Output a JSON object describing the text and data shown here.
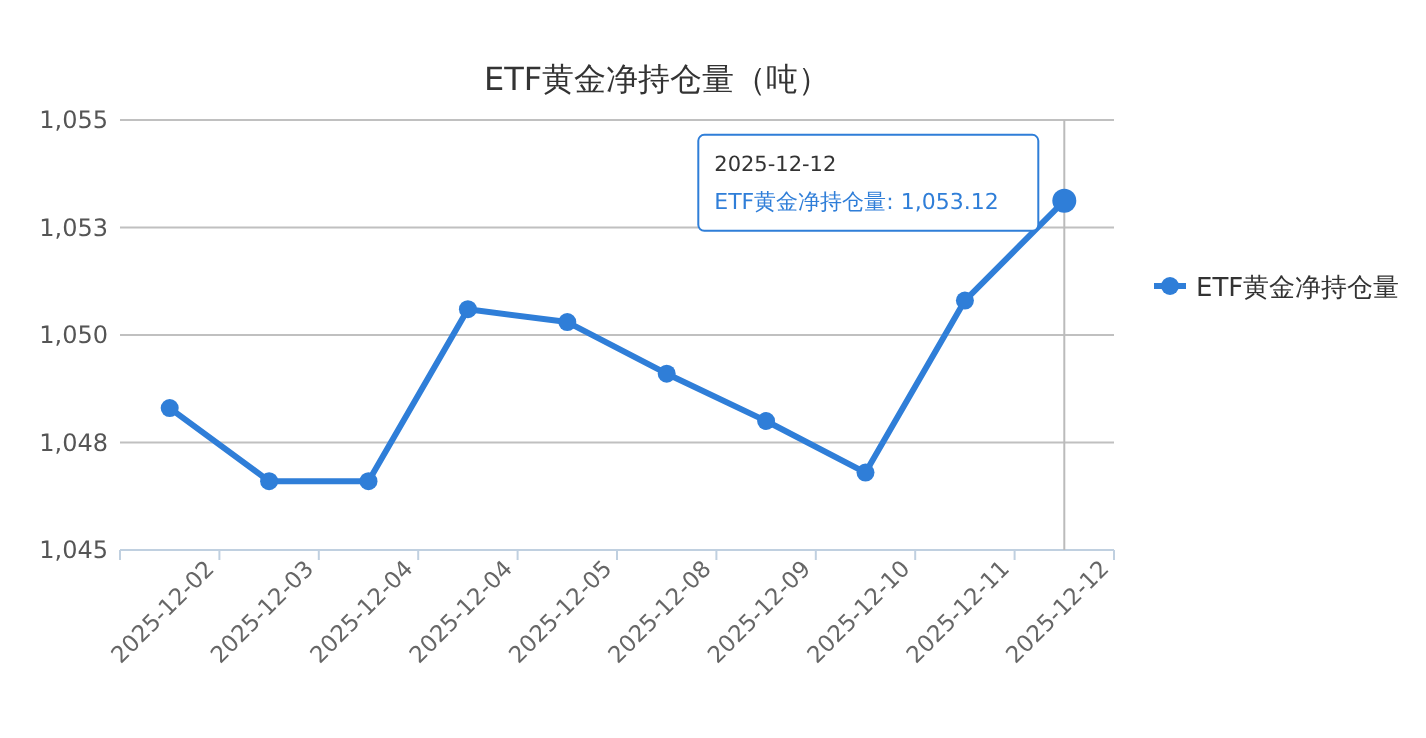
{
  "chart_data": {
    "type": "line",
    "title": "ETF黄金净持仓量（吨）",
    "categories": [
      "2025-12-02",
      "2025-12-03",
      "2025-12-04",
      "2025-12-04",
      "2025-12-05",
      "2025-12-08",
      "2025-12-09",
      "2025-12-10",
      "2025-12-11",
      "2025-12-12"
    ],
    "series": [
      {
        "name": "ETF黄金净持仓量",
        "color": "#2f7ed8",
        "values": [
          1048.3,
          1046.6,
          1046.6,
          1050.6,
          1050.3,
          1049.1,
          1048.0,
          1046.8,
          1050.8,
          1053.12
        ]
      }
    ],
    "ylim": [
      1045,
      1055
    ],
    "yticks": [
      {
        "value": 1045,
        "label": "1,045"
      },
      {
        "value": 1047.5,
        "label": "1,048"
      },
      {
        "value": 1050,
        "label": "1,050"
      },
      {
        "value": 1052.5,
        "label": "1,053"
      },
      {
        "value": 1055,
        "label": "1,055"
      }
    ],
    "ref_lines": [
      {
        "axis": "x",
        "value": "2025-12-12",
        "color": "#bbbbbb"
      }
    ],
    "grid": "y",
    "legend": "right",
    "marker": "circle",
    "line_style": "solid",
    "annotations": [
      {
        "text": "2025-12-12\nETF黄金净持仓量: 1,053.12",
        "x": "2025-12-12",
        "y": 1053.12
      }
    ]
  }
}
